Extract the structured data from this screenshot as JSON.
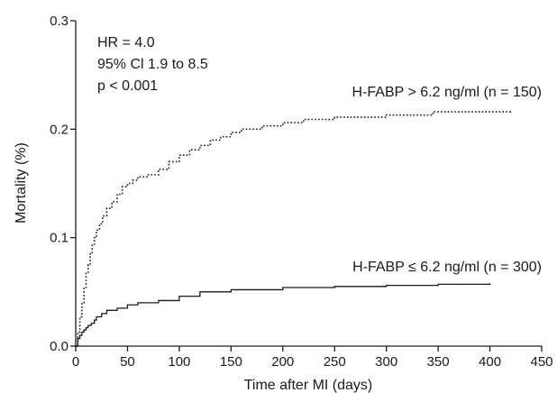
{
  "chart_data": {
    "type": "line",
    "title": "",
    "xlabel": "Time after MI (days)",
    "ylabel": "Mortality (%)",
    "xlim": [
      0,
      450
    ],
    "ylim": [
      0,
      0.3
    ],
    "xticks": [
      "0",
      "50",
      "100",
      "150",
      "200",
      "250",
      "300",
      "350",
      "400",
      "450"
    ],
    "yticks": [
      "0.0",
      "0.1",
      "0.2",
      "0.3"
    ],
    "grid": false,
    "legend": "none",
    "annotations": {
      "hr": "HR = 4.0",
      "ci": "95% Cl 1.9 to 8.5",
      "p": "p < 0.001"
    },
    "series": [
      {
        "name": "H-FABP > 6.2 ng/ml (n = 150)",
        "style": "dotted",
        "color": "#1a1a1a",
        "x": [
          0,
          2,
          4,
          6,
          8,
          10,
          12,
          14,
          16,
          18,
          20,
          23,
          26,
          30,
          35,
          40,
          45,
          50,
          55,
          60,
          70,
          80,
          90,
          100,
          110,
          120,
          130,
          140,
          150,
          160,
          180,
          200,
          220,
          250,
          300,
          340,
          345,
          400,
          420
        ],
        "y": [
          0.0,
          0.013,
          0.027,
          0.04,
          0.053,
          0.067,
          0.075,
          0.085,
          0.093,
          0.1,
          0.107,
          0.113,
          0.12,
          0.127,
          0.133,
          0.14,
          0.147,
          0.15,
          0.153,
          0.156,
          0.158,
          0.163,
          0.17,
          0.176,
          0.181,
          0.185,
          0.19,
          0.193,
          0.197,
          0.2,
          0.203,
          0.206,
          0.209,
          0.211,
          0.213,
          0.213,
          0.216,
          0.216,
          0.218
        ],
        "label_text": "H-FABP > 6.2 ng/ml (n = 150)"
      },
      {
        "name": "H-FABP ≤ 6.2 ng/ml (n = 300)",
        "style": "solid",
        "color": "#1a1a1a",
        "x": [
          0,
          2,
          4,
          6,
          8,
          10,
          12,
          15,
          18,
          20,
          25,
          30,
          40,
          50,
          60,
          80,
          100,
          120,
          150,
          200,
          250,
          300,
          350,
          400
        ],
        "y": [
          0.0,
          0.007,
          0.01,
          0.013,
          0.015,
          0.017,
          0.019,
          0.021,
          0.024,
          0.027,
          0.03,
          0.033,
          0.035,
          0.038,
          0.04,
          0.042,
          0.046,
          0.05,
          0.052,
          0.054,
          0.055,
          0.056,
          0.057,
          0.058
        ],
        "label_text": "H-FABP ≤ 6.2 ng/ml (n = 300)"
      }
    ]
  }
}
